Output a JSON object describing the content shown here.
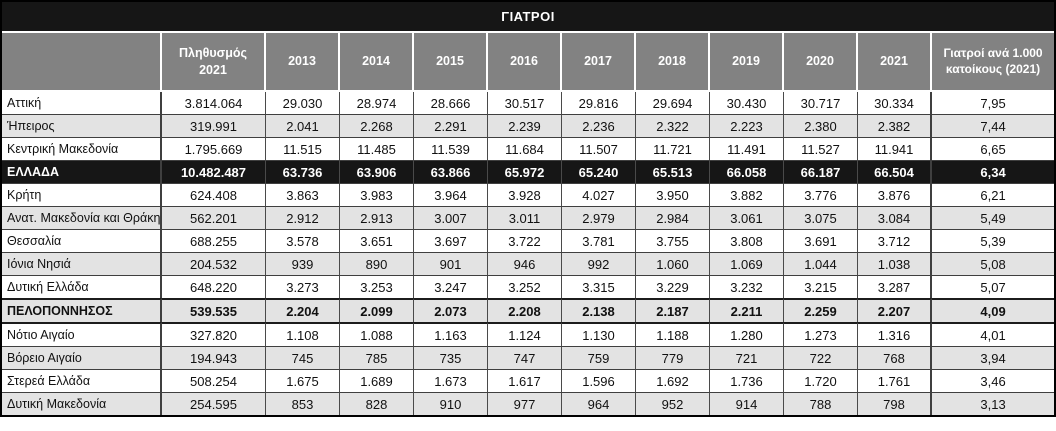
{
  "title": "ΓΙΑΤΡΟΙ",
  "chart_data": {
    "type": "table",
    "title": "ΓΙΑΤΡΟΙ",
    "columns": [
      "",
      "Πληθυσμός 2021",
      "2013",
      "2014",
      "2015",
      "2016",
      "2017",
      "2018",
      "2019",
      "2020",
      "2021",
      "Γιατροί ανά 1.000 κατοίκους (2021)"
    ],
    "rows": [
      [
        "Αττική",
        "3.814.064",
        "29.030",
        "28.974",
        "28.666",
        "30.517",
        "29.816",
        "29.694",
        "30.430",
        "30.717",
        "30.334",
        "7,95"
      ],
      [
        "Ήπειρος",
        "319.991",
        "2.041",
        "2.268",
        "2.291",
        "2.239",
        "2.236",
        "2.322",
        "2.223",
        "2.380",
        "2.382",
        "7,44"
      ],
      [
        "Κεντρική Μακεδονία",
        "1.795.669",
        "11.515",
        "11.485",
        "11.539",
        "11.684",
        "11.507",
        "11.721",
        "11.491",
        "11.527",
        "11.941",
        "6,65"
      ],
      [
        "ΕΛΛΑΔΑ",
        "10.482.487",
        "63.736",
        "63.906",
        "63.866",
        "65.972",
        "65.240",
        "65.513",
        "66.058",
        "66.187",
        "66.504",
        "6,34"
      ],
      [
        "Κρήτη",
        "624.408",
        "3.863",
        "3.983",
        "3.964",
        "3.928",
        "4.027",
        "3.950",
        "3.882",
        "3.776",
        "3.876",
        "6,21"
      ],
      [
        "Ανατ. Μακεδονία και Θράκη",
        "562.201",
        "2.912",
        "2.913",
        "3.007",
        "3.011",
        "2.979",
        "2.984",
        "3.061",
        "3.075",
        "3.084",
        "5,49"
      ],
      [
        "Θεσσαλία",
        "688.255",
        "3.578",
        "3.651",
        "3.697",
        "3.722",
        "3.781",
        "3.755",
        "3.808",
        "3.691",
        "3.712",
        "5,39"
      ],
      [
        "Ιόνια Νησιά",
        "204.532",
        "939",
        "890",
        "901",
        "946",
        "992",
        "1.060",
        "1.069",
        "1.044",
        "1.038",
        "5,08"
      ],
      [
        "Δυτική Ελλάδα",
        "648.220",
        "3.273",
        "3.253",
        "3.247",
        "3.252",
        "3.315",
        "3.229",
        "3.232",
        "3.215",
        "3.287",
        "5,07"
      ],
      [
        "ΠΕΛΟΠΟΝΝΗΣΟΣ",
        "539.535",
        "2.204",
        "2.099",
        "2.073",
        "2.208",
        "2.138",
        "2.187",
        "2.211",
        "2.259",
        "2.207",
        "4,09"
      ],
      [
        "Νότιο Αιγαίο",
        "327.820",
        "1.108",
        "1.088",
        "1.163",
        "1.124",
        "1.130",
        "1.188",
        "1.280",
        "1.273",
        "1.316",
        "4,01"
      ],
      [
        "Βόρειο Αιγαίο",
        "194.943",
        "745",
        "785",
        "735",
        "747",
        "759",
        "779",
        "721",
        "722",
        "768",
        "3,94"
      ],
      [
        "Στερεά Ελλάδα",
        "508.254",
        "1.675",
        "1.689",
        "1.673",
        "1.617",
        "1.596",
        "1.692",
        "1.736",
        "1.720",
        "1.761",
        "3,46"
      ],
      [
        "Δυτική Μακεδονία",
        "254.595",
        "853",
        "828",
        "910",
        "977",
        "964",
        "952",
        "914",
        "788",
        "798",
        "3,13"
      ]
    ],
    "row_variants": [
      "default",
      "shaded",
      "default",
      "total",
      "default",
      "shaded",
      "default",
      "shaded",
      "default",
      "subtotal",
      "default",
      "shaded",
      "default",
      "shaded"
    ],
    "layout": {
      "legend_position": "none",
      "grid": "on",
      "note": "striped rows; ΕΛΛΑΔΑ row inverted black; ΠΕΛΟΠΟΝΝΗΣΟΣ row bold shaded"
    }
  },
  "colors": {
    "title_bg": "#161616",
    "title_text": "#ffffff",
    "header_bg": "#828282",
    "header_text": "#ffffff",
    "row_shaded_bg": "#e3e3e3",
    "total_row_bg": "#161616",
    "total_row_text": "#ffffff",
    "body_text": "#111111",
    "grid_line": "#4a4a4a",
    "outer_border": "#000000"
  }
}
